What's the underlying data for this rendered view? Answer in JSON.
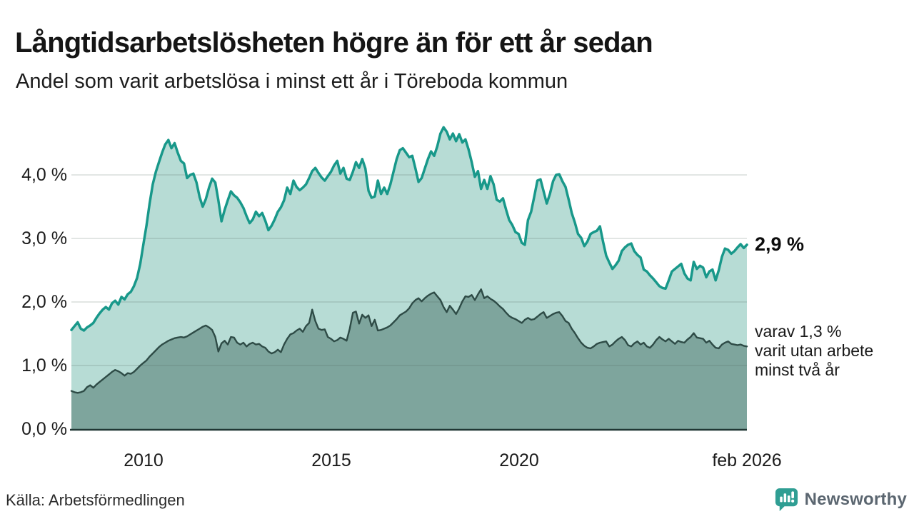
{
  "header": {
    "title": "Långtidsarbetslösheten högre än för ett år sedan",
    "subtitle": "Andel som varit arbetslösa i minst ett år i Töreboda kommun"
  },
  "annotations": {
    "latest_value_label": "2,9 %",
    "secondary_label_lines": [
      "varav 1,3 %",
      "varit utan arbete",
      "minst två år"
    ]
  },
  "footer": {
    "source": "Källa: Arbetsförmedlingen",
    "brand": "Newsworthy"
  },
  "colors": {
    "series1_line": "#18988a",
    "series1_fill": "#b7dcd5",
    "series2_line": "#2e4b46",
    "series2_fill": "#7ea59d",
    "grid": "#50635f",
    "axis": "#203734",
    "logo_teal": "#2f9e93",
    "wordmark_gray": "#5b6670"
  },
  "chart_data": {
    "type": "area",
    "title": "Långtidsarbetslösheten högre än för ett år sedan",
    "subtitle": "Andel som varit arbetslösa i minst ett år i Töreboda kommun",
    "unit": "%",
    "grid": "horizontal",
    "x_start": "2008-02",
    "x_step": "1 month",
    "x_end": "2026-02",
    "x_axis": {
      "tick_labels": [
        "2010",
        "2015",
        "2020",
        "feb 2026"
      ],
      "tick_years": [
        2010.0,
        2015.0,
        2020.0,
        2026.083
      ],
      "range_years": [
        2008.083,
        2026.083
      ]
    },
    "y_axis": {
      "tick_labels": [
        "0,0 %",
        "1,0 %",
        "2,0 %",
        "3,0 %",
        "4,0 %"
      ],
      "tick_values": [
        0,
        1,
        2,
        3,
        4
      ],
      "range": [
        0,
        4.85
      ]
    },
    "series": [
      {
        "name": "Andel arbetslösa minst ett år",
        "end_label": "2,9 %",
        "latest_value": 2.9,
        "values": [
          1.56,
          1.62,
          1.68,
          1.58,
          1.55,
          1.6,
          1.63,
          1.67,
          1.75,
          1.82,
          1.88,
          1.92,
          1.88,
          1.98,
          2.02,
          1.96,
          2.08,
          2.04,
          2.12,
          2.16,
          2.25,
          2.38,
          2.6,
          2.9,
          3.2,
          3.55,
          3.85,
          4.05,
          4.2,
          4.35,
          4.48,
          4.55,
          4.42,
          4.5,
          4.35,
          4.22,
          4.18,
          3.95,
          4.0,
          4.02,
          3.88,
          3.65,
          3.5,
          3.62,
          3.8,
          3.94,
          3.88,
          3.6,
          3.27,
          3.45,
          3.6,
          3.74,
          3.68,
          3.64,
          3.57,
          3.48,
          3.35,
          3.24,
          3.3,
          3.42,
          3.35,
          3.4,
          3.28,
          3.13,
          3.2,
          3.3,
          3.42,
          3.49,
          3.6,
          3.8,
          3.7,
          3.91,
          3.81,
          3.76,
          3.8,
          3.85,
          3.95,
          4.06,
          4.11,
          4.03,
          3.96,
          3.91,
          3.98,
          4.05,
          4.15,
          4.22,
          4.02,
          4.11,
          3.94,
          3.92,
          4.05,
          4.2,
          4.11,
          4.25,
          4.1,
          3.75,
          3.64,
          3.66,
          3.91,
          3.7,
          3.8,
          3.7,
          3.85,
          4.05,
          4.25,
          4.39,
          4.42,
          4.35,
          4.28,
          4.3,
          4.1,
          3.89,
          3.95,
          4.1,
          4.25,
          4.37,
          4.3,
          4.45,
          4.65,
          4.75,
          4.68,
          4.56,
          4.65,
          4.53,
          4.64,
          4.51,
          4.56,
          4.4,
          4.2,
          3.97,
          4.06,
          3.78,
          3.92,
          3.78,
          3.98,
          3.85,
          3.61,
          3.58,
          3.63,
          3.45,
          3.29,
          3.21,
          3.1,
          3.07,
          2.93,
          2.9,
          3.29,
          3.42,
          3.66,
          3.91,
          3.93,
          3.74,
          3.55,
          3.7,
          3.9,
          4.0,
          4.01,
          3.9,
          3.81,
          3.61,
          3.4,
          3.25,
          3.07,
          3.01,
          2.88,
          2.95,
          3.07,
          3.1,
          3.12,
          3.19,
          2.95,
          2.73,
          2.62,
          2.52,
          2.58,
          2.65,
          2.8,
          2.86,
          2.9,
          2.92,
          2.8,
          2.74,
          2.7,
          2.51,
          2.48,
          2.42,
          2.37,
          2.31,
          2.25,
          2.22,
          2.21,
          2.34,
          2.48,
          2.52,
          2.56,
          2.6,
          2.45,
          2.37,
          2.34,
          2.63,
          2.52,
          2.57,
          2.54,
          2.39,
          2.48,
          2.51,
          2.34,
          2.5,
          2.71,
          2.84,
          2.82,
          2.76,
          2.8,
          2.86,
          2.91,
          2.85,
          2.9
        ]
      },
      {
        "name": "Andel arbetslösa minst två år",
        "end_label": "varav 1,3 % varit utan arbete minst två år",
        "latest_value": 1.3,
        "values": [
          0.6,
          0.58,
          0.57,
          0.58,
          0.6,
          0.66,
          0.69,
          0.65,
          0.7,
          0.74,
          0.78,
          0.82,
          0.86,
          0.9,
          0.93,
          0.91,
          0.88,
          0.84,
          0.88,
          0.87,
          0.9,
          0.95,
          1.0,
          1.04,
          1.08,
          1.14,
          1.19,
          1.24,
          1.29,
          1.33,
          1.36,
          1.39,
          1.41,
          1.43,
          1.44,
          1.45,
          1.44,
          1.46,
          1.49,
          1.52,
          1.55,
          1.58,
          1.61,
          1.63,
          1.6,
          1.56,
          1.45,
          1.22,
          1.35,
          1.39,
          1.33,
          1.45,
          1.44,
          1.36,
          1.33,
          1.36,
          1.3,
          1.34,
          1.36,
          1.33,
          1.34,
          1.3,
          1.28,
          1.22,
          1.19,
          1.21,
          1.25,
          1.21,
          1.33,
          1.42,
          1.49,
          1.51,
          1.55,
          1.58,
          1.53,
          1.62,
          1.67,
          1.88,
          1.7,
          1.58,
          1.56,
          1.57,
          1.45,
          1.42,
          1.38,
          1.4,
          1.44,
          1.42,
          1.39,
          1.58,
          1.83,
          1.85,
          1.66,
          1.8,
          1.75,
          1.79,
          1.62,
          1.72,
          1.55,
          1.56,
          1.58,
          1.6,
          1.63,
          1.68,
          1.73,
          1.79,
          1.82,
          1.85,
          1.9,
          1.98,
          2.03,
          2.06,
          2.01,
          2.06,
          2.1,
          2.13,
          2.15,
          2.09,
          2.03,
          1.92,
          1.84,
          1.94,
          1.88,
          1.81,
          1.9,
          2.01,
          2.09,
          2.08,
          2.11,
          2.03,
          2.12,
          2.2,
          2.06,
          2.09,
          2.05,
          2.02,
          1.98,
          1.93,
          1.89,
          1.83,
          1.78,
          1.75,
          1.73,
          1.7,
          1.67,
          1.72,
          1.75,
          1.72,
          1.73,
          1.77,
          1.81,
          1.84,
          1.75,
          1.78,
          1.81,
          1.83,
          1.84,
          1.78,
          1.7,
          1.67,
          1.58,
          1.51,
          1.43,
          1.36,
          1.31,
          1.28,
          1.27,
          1.3,
          1.34,
          1.36,
          1.37,
          1.38,
          1.3,
          1.33,
          1.38,
          1.42,
          1.45,
          1.4,
          1.32,
          1.3,
          1.35,
          1.38,
          1.33,
          1.36,
          1.3,
          1.28,
          1.33,
          1.4,
          1.45,
          1.41,
          1.38,
          1.42,
          1.38,
          1.34,
          1.39,
          1.37,
          1.36,
          1.41,
          1.45,
          1.51,
          1.44,
          1.43,
          1.42,
          1.36,
          1.39,
          1.33,
          1.28,
          1.27,
          1.33,
          1.36,
          1.38,
          1.34,
          1.33,
          1.32,
          1.33,
          1.31,
          1.3
        ]
      }
    ]
  }
}
